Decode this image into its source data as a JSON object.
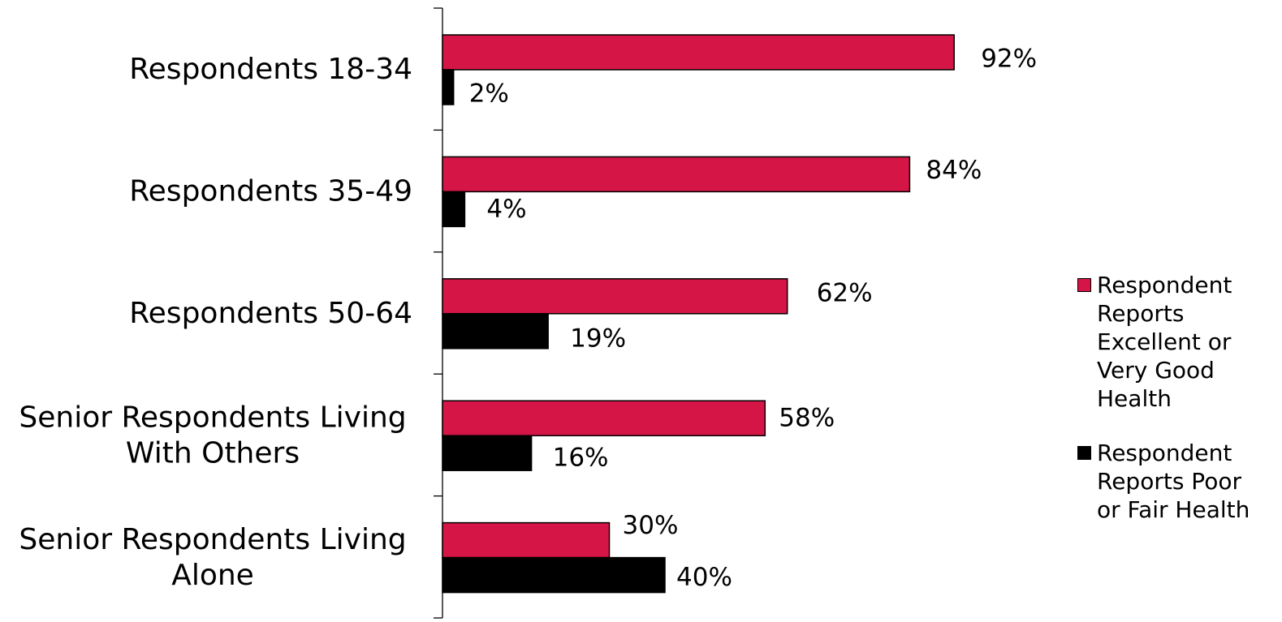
{
  "chart_data": {
    "type": "bar",
    "orientation": "horizontal",
    "categories": [
      "Respondents 18-34",
      "Respondents 35-49",
      "Respondents 50-64",
      "Senior Respondents Living With Others",
      "Senior Respondents Living Alone"
    ],
    "series": [
      {
        "name": "Respondent Reports Excellent or Very Good Health",
        "color": "#d41545",
        "values": [
          92,
          84,
          62,
          58,
          30
        ],
        "labels": [
          "92%",
          "84%",
          "62%",
          "58%",
          "30%"
        ]
      },
      {
        "name": "Respondent Reports Poor or Fair Health",
        "color": "#000000",
        "values": [
          2,
          4,
          19,
          16,
          40
        ],
        "labels": [
          "2%",
          "4%",
          "19%",
          "16%",
          "40%"
        ]
      }
    ],
    "xlim": [
      0,
      100
    ],
    "grid": false,
    "legend_position": "right"
  }
}
